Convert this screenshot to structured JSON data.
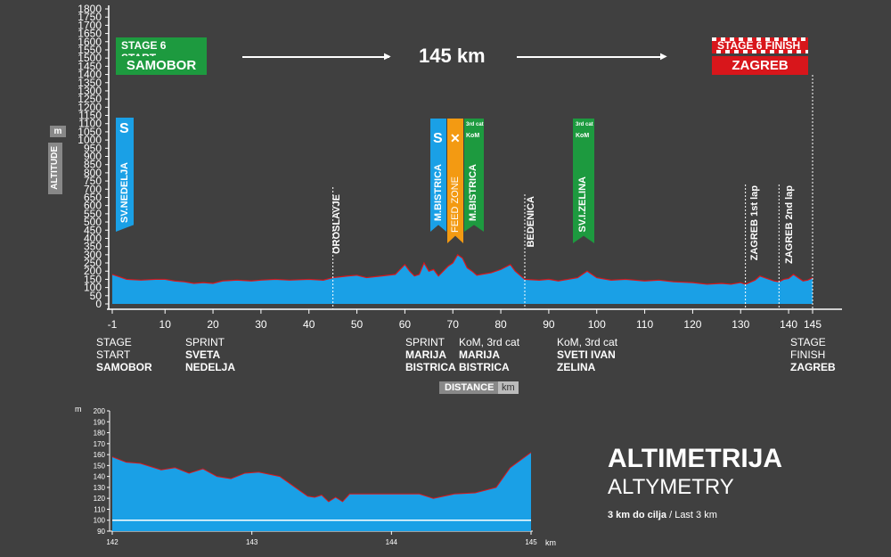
{
  "chart_data": [
    {
      "type": "area",
      "name": "main-profile",
      "ylabel": "ALTITUDE",
      "yunit": "m",
      "xlabel": "DISTANCE",
      "xunit": "km",
      "ylim": [
        0,
        1800
      ],
      "xlim": [
        -1,
        145
      ],
      "yticks": [
        0,
        50,
        100,
        150,
        200,
        250,
        300,
        350,
        400,
        450,
        500,
        550,
        600,
        650,
        700,
        750,
        800,
        850,
        900,
        950,
        1000,
        1050,
        1100,
        1150,
        1200,
        1250,
        1300,
        1350,
        1400,
        1450,
        1500,
        1550,
        1600,
        1650,
        1700,
        1750,
        1800
      ],
      "xticks": [
        -1,
        10,
        20,
        30,
        40,
        50,
        60,
        70,
        80,
        90,
        100,
        110,
        120,
        130,
        140,
        145
      ],
      "x": [
        -1,
        0,
        2,
        5,
        8,
        10,
        12,
        14,
        16,
        18,
        20,
        22,
        25,
        28,
        30,
        33,
        36,
        40,
        43,
        45,
        48,
        50,
        52,
        55,
        58,
        60,
        61,
        62,
        63,
        64,
        65,
        66,
        67,
        68,
        69,
        70,
        71,
        72,
        73,
        74,
        75,
        76,
        78,
        80,
        82,
        83,
        85,
        88,
        90,
        92,
        94,
        96,
        97,
        98,
        100,
        103,
        106,
        110,
        113,
        116,
        120,
        123,
        126,
        128,
        130,
        131,
        133,
        134,
        135,
        136,
        137,
        138,
        139,
        140,
        141,
        142,
        143,
        144,
        145
      ],
      "y": [
        180,
        170,
        150,
        145,
        150,
        150,
        140,
        135,
        125,
        130,
        125,
        140,
        145,
        140,
        145,
        150,
        145,
        150,
        145,
        160,
        170,
        175,
        160,
        170,
        180,
        240,
        200,
        170,
        180,
        250,
        200,
        210,
        170,
        200,
        230,
        250,
        300,
        280,
        220,
        200,
        175,
        180,
        190,
        210,
        240,
        200,
        150,
        145,
        150,
        140,
        150,
        160,
        180,
        200,
        160,
        145,
        150,
        140,
        145,
        135,
        130,
        120,
        125,
        120,
        130,
        120,
        145,
        170,
        160,
        150,
        140,
        135,
        150,
        155,
        180,
        160,
        140,
        145,
        160
      ]
    },
    {
      "type": "area",
      "name": "last-3-km",
      "yunit": "m",
      "xunit": "km",
      "ylim": [
        90,
        200
      ],
      "xlim": [
        142,
        145
      ],
      "yticks": [
        90,
        100,
        110,
        120,
        130,
        140,
        150,
        160,
        170,
        180,
        190,
        200
      ],
      "xticks": [
        142,
        143,
        144,
        145
      ],
      "x": [
        142,
        142.1,
        142.2,
        142.35,
        142.45,
        142.55,
        142.65,
        142.75,
        142.85,
        142.95,
        143.05,
        143.2,
        143.3,
        143.4,
        143.45,
        143.5,
        143.55,
        143.6,
        143.65,
        143.7,
        143.8,
        143.9,
        144.0,
        144.1,
        144.2,
        144.3,
        144.45,
        144.6,
        144.75,
        144.85,
        145
      ],
      "y": [
        158,
        153,
        152,
        146,
        148,
        143,
        147,
        140,
        138,
        143,
        144,
        140,
        131,
        122,
        121,
        123,
        117,
        121,
        117,
        124,
        124,
        124,
        124,
        124,
        124,
        120,
        124,
        125,
        130,
        148,
        162
      ]
    }
  ],
  "stage": {
    "start_label": "STAGE 6 START",
    "start_city": "SAMOBOR",
    "finish_label": "STAGE 6 FINISH",
    "finish_city": "ZAGREB",
    "distance": "145 km"
  },
  "markers": {
    "sprint1": "SV.NEDELJA",
    "oroslavje": "OROSLAVJE",
    "sprint2": "M.BISTRICA",
    "feed": "FEED ZONE",
    "kom1": "M.BISTRICA",
    "bedenica": "BEDENICA",
    "kom2": "SV.I.ZELINA",
    "lap1": "ZAGREB 1st lap",
    "lap2": "ZAGREB 2nd lap",
    "s_icon": "S",
    "kom_small": "KoM",
    "cat_small": "3rd cat"
  },
  "bottom_labels": {
    "start_1": "STAGE",
    "start_2": "START",
    "start_3": "SAMOBOR",
    "sprint_1": "SPRINT",
    "sprint_2": "SVETA",
    "sprint_3": "NEDELJA",
    "msprint_1": "SPRINT",
    "msprint_2": "MARIJA",
    "msprint_3": "BISTRICA",
    "kom1_1": "KoM, 3rd cat",
    "kom1_2": "MARIJA",
    "kom1_3": "BISTRICA",
    "kom2_1": "KoM, 3rd cat",
    "kom2_2": "SVETI IVAN",
    "kom2_3": "ZELINA",
    "fin_1": "STAGE",
    "fin_2": "FINISH",
    "fin_3": "ZAGREB"
  },
  "axis": {
    "altitude": "ALTITUDE",
    "m": "m",
    "distance": "DISTANCE",
    "km": "km",
    "small_m": "m",
    "small_km": "km"
  },
  "legend": {
    "title": "ALTIMETRIJA",
    "subtitle": "ALTYMETRY",
    "note_bold": "3 km do cilja",
    "note_rest": " / Last 3 km"
  },
  "colors": {
    "fill": "#1aa0e6",
    "line": "#d8161b",
    "green": "#1d9a3f",
    "red": "#d8161b",
    "blue": "#1aa0e6",
    "orange": "#f39a12"
  }
}
